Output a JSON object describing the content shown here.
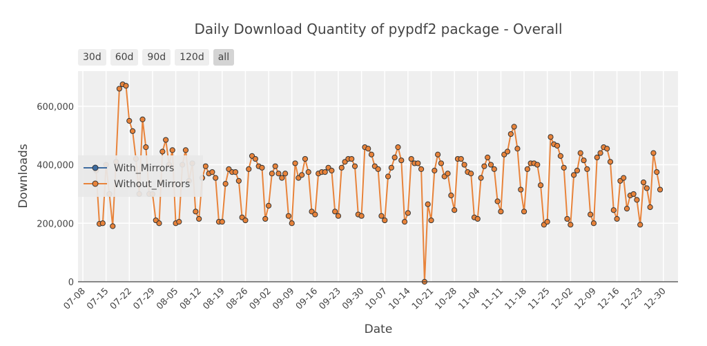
{
  "title": "Daily Download Quantity of pypdf2 package - Overall",
  "range_buttons": [
    {
      "label": "30d",
      "active": false
    },
    {
      "label": "60d",
      "active": false
    },
    {
      "label": "90d",
      "active": false
    },
    {
      "label": "120d",
      "active": false
    },
    {
      "label": "all",
      "active": true
    }
  ],
  "chart_data": {
    "type": "line",
    "xlabel": "Date",
    "ylabel": "Downloads",
    "x_start": "2023-07-12",
    "x_tick_labels": [
      "07-08",
      "07-15",
      "07-22",
      "07-29",
      "08-05",
      "08-12",
      "08-19",
      "08-26",
      "09-02",
      "09-09",
      "09-16",
      "09-23",
      "09-30",
      "10-07",
      "10-14",
      "10-21",
      "10-28",
      "11-04",
      "11-11",
      "11-18",
      "11-25",
      "12-02",
      "12-09",
      "12-16",
      "12-23",
      "12-30"
    ],
    "y_ticks": [
      0,
      200000,
      400000,
      600000
    ],
    "y_tick_labels": [
      "0",
      "200,000",
      "400,000",
      "600,000"
    ],
    "ylim": [
      0,
      720000
    ],
    "grid": true,
    "legend_position": "left, middle",
    "series": [
      {
        "name": "With_Mirrors",
        "color": "#3d6ba0",
        "visible_in_plot": false,
        "values": []
      },
      {
        "name": "Without_Mirrors",
        "color": "#e8833a",
        "values": [
          380000,
          198000,
          200000,
          400000,
          300000,
          190000,
          410000,
          660000,
          675000,
          670000,
          550000,
          515000,
          420000,
          300000,
          555000,
          460000,
          300000,
          300000,
          210000,
          200000,
          445000,
          485000,
          400000,
          450000,
          200000,
          205000,
          400000,
          450000,
          345000,
          405000,
          240000,
          215000,
          355000,
          395000,
          370000,
          375000,
          355000,
          205000,
          205000,
          335000,
          385000,
          375000,
          375000,
          345000,
          220000,
          210000,
          385000,
          430000,
          420000,
          395000,
          390000,
          215000,
          260000,
          370000,
          395000,
          370000,
          355000,
          370000,
          225000,
          200000,
          405000,
          355000,
          365000,
          420000,
          375000,
          240000,
          230000,
          370000,
          375000,
          375000,
          390000,
          380000,
          240000,
          225000,
          390000,
          410000,
          420000,
          420000,
          395000,
          230000,
          225000,
          460000,
          455000,
          435000,
          395000,
          385000,
          225000,
          210000,
          360000,
          390000,
          425000,
          460000,
          415000,
          205000,
          235000,
          420000,
          405000,
          405000,
          385000,
          0,
          265000,
          210000,
          380000,
          435000,
          405000,
          360000,
          370000,
          295000,
          245000,
          420000,
          420000,
          400000,
          375000,
          370000,
          220000,
          215000,
          355000,
          395000,
          425000,
          400000,
          385000,
          275000,
          240000,
          435000,
          445000,
          505000,
          530000,
          455000,
          315000,
          240000,
          385000,
          405000,
          405000,
          400000,
          330000,
          195000,
          205000,
          495000,
          470000,
          465000,
          430000,
          390000,
          215000,
          195000,
          365000,
          380000,
          440000,
          415000,
          385000,
          230000,
          200000,
          425000,
          440000,
          460000,
          455000,
          410000,
          245000,
          215000,
          345000,
          355000,
          250000,
          295000,
          300000,
          280000,
          195000,
          340000,
          320000,
          255000,
          440000,
          375000,
          315000
        ]
      }
    ]
  }
}
